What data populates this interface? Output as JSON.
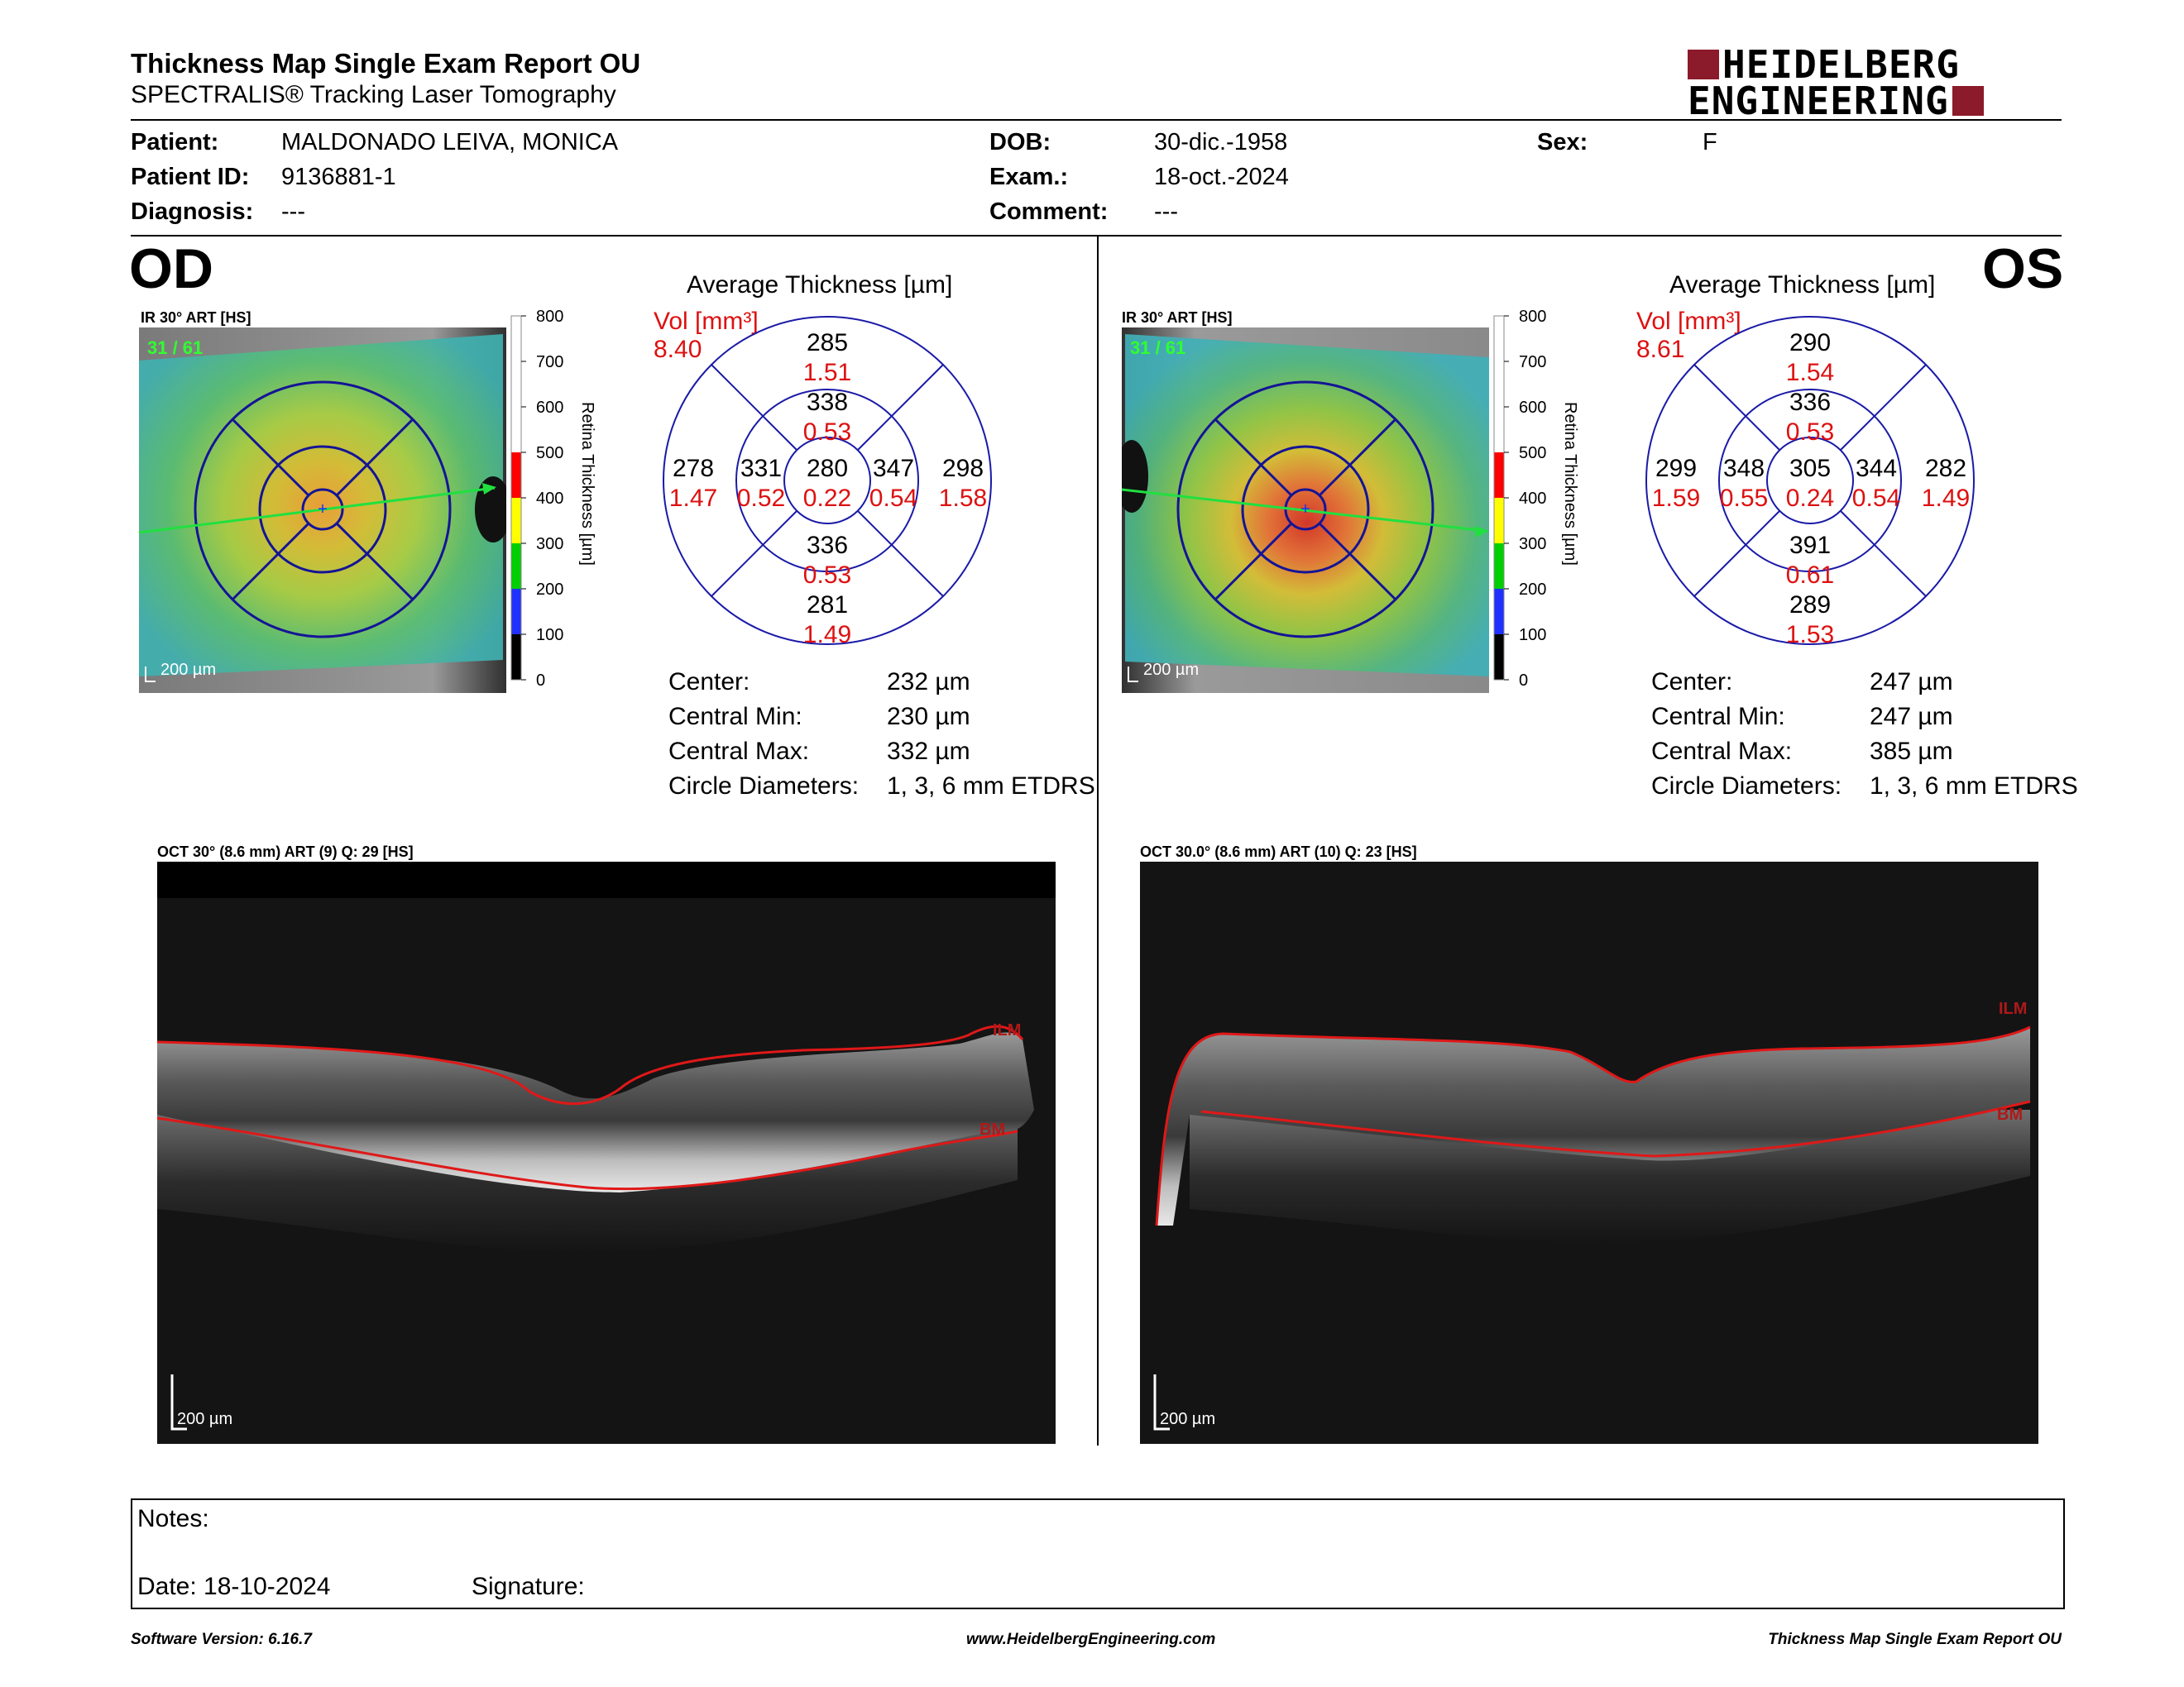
{
  "report": {
    "title": "Thickness Map Single Exam Report OU",
    "subtitle": "SPECTRALIS® Tracking Laser Tomography",
    "logo_line1": "HEIDELBERG",
    "logo_line2": "ENGINEERING"
  },
  "patient": {
    "patient_label": "Patient:",
    "patient_value": "MALDONADO LEIVA, MONICA",
    "id_label": "Patient ID:",
    "id_value": "9136881-1",
    "diagnosis_label": "Diagnosis:",
    "diagnosis_value": "---",
    "dob_label": "DOB:",
    "dob_value": "30-dic.-1958",
    "exam_label": "Exam.:",
    "exam_value": "18-oct.-2024",
    "comment_label": "Comment:",
    "comment_value": "---",
    "sex_label": "Sex:",
    "sex_value": "F"
  },
  "scale": {
    "ticks": [
      "800",
      "700",
      "600",
      "500",
      "400",
      "300",
      "200",
      "100",
      "0"
    ],
    "title": "Retina Thickness [µm]",
    "colors": [
      "#ffffff",
      "#ffffff",
      "#ffffff",
      "#ff0000",
      "#ffff00",
      "#00d000",
      "#2030ff",
      "#000000"
    ]
  },
  "od": {
    "eye": "OD",
    "ir_label": "IR 30° ART [HS]",
    "ir_counter": "31 / 61",
    "ir_scalebar": "200 µm",
    "avg_title": "Average Thickness [µm]",
    "vol_label": "Vol [mm³]",
    "vol_value": "8.40",
    "grid": {
      "center": {
        "t": "280",
        "v": "0.22"
      },
      "inner_sup": {
        "t": "338",
        "v": "0.53"
      },
      "inner_inf": {
        "t": "336",
        "v": "0.53"
      },
      "inner_nasal_left": {
        "t": "331",
        "v": "0.52"
      },
      "inner_right": {
        "t": "347",
        "v": "0.54"
      },
      "outer_sup": {
        "t": "285",
        "v": "1.51"
      },
      "outer_inf": {
        "t": "281",
        "v": "1.49"
      },
      "outer_left": {
        "t": "278",
        "v": "1.47"
      },
      "outer_right": {
        "t": "298",
        "v": "1.58"
      }
    },
    "stats": {
      "center_label": "Center:",
      "center_value": "232 µm",
      "min_label": "Central Min:",
      "min_value": "230 µm",
      "max_label": "Central Max:",
      "max_value": "332 µm",
      "diam_label": "Circle Diameters:",
      "diam_value": "1, 3, 6 mm ETDRS"
    },
    "oct_label": "OCT 30° (8.6 mm) ART (9) Q: 29 [HS]",
    "oct_ilm": "ILM",
    "oct_bm": "BM",
    "oct_scalebar": "200 µm"
  },
  "os": {
    "eye": "OS",
    "ir_label": "IR 30° ART [HS]",
    "ir_counter": "31 / 61",
    "ir_scalebar": "200 µm",
    "avg_title": "Average Thickness [µm]",
    "vol_label": "Vol [mm³]",
    "vol_value": "8.61",
    "grid": {
      "center": {
        "t": "305",
        "v": "0.24"
      },
      "inner_sup": {
        "t": "336",
        "v": "0.53"
      },
      "inner_inf": {
        "t": "391",
        "v": "0.61"
      },
      "inner_nasal_left": {
        "t": "348",
        "v": "0.55"
      },
      "inner_right": {
        "t": "344",
        "v": "0.54"
      },
      "outer_sup": {
        "t": "290",
        "v": "1.54"
      },
      "outer_inf": {
        "t": "289",
        "v": "1.53"
      },
      "outer_left": {
        "t": "299",
        "v": "1.59"
      },
      "outer_right": {
        "t": "282",
        "v": "1.49"
      }
    },
    "stats": {
      "center_label": "Center:",
      "center_value": "247 µm",
      "min_label": "Central Min:",
      "min_value": "247 µm",
      "max_label": "Central Max:",
      "max_value": "385 µm",
      "diam_label": "Circle Diameters:",
      "diam_value": "1, 3, 6 mm ETDRS"
    },
    "oct_label": "OCT 30.0° (8.6 mm) ART (10) Q: 23 [HS]",
    "oct_ilm": "ILM",
    "oct_bm": "BM",
    "oct_scalebar": "200 µm"
  },
  "notes": {
    "notes_label": "Notes:",
    "date_label": "Date: 18-10-2024",
    "signature_label": "Signature:"
  },
  "footer": {
    "software": "Software Version: 6.16.7",
    "website": "www.HeidelbergEngineering.com",
    "report_name": "Thickness Map Single Exam Report OU"
  },
  "colors": {
    "value_red": "#dd1111",
    "grid_blue": "#1a1aa8",
    "brand": "#8b1a2a",
    "seg_red": "#e01818"
  }
}
